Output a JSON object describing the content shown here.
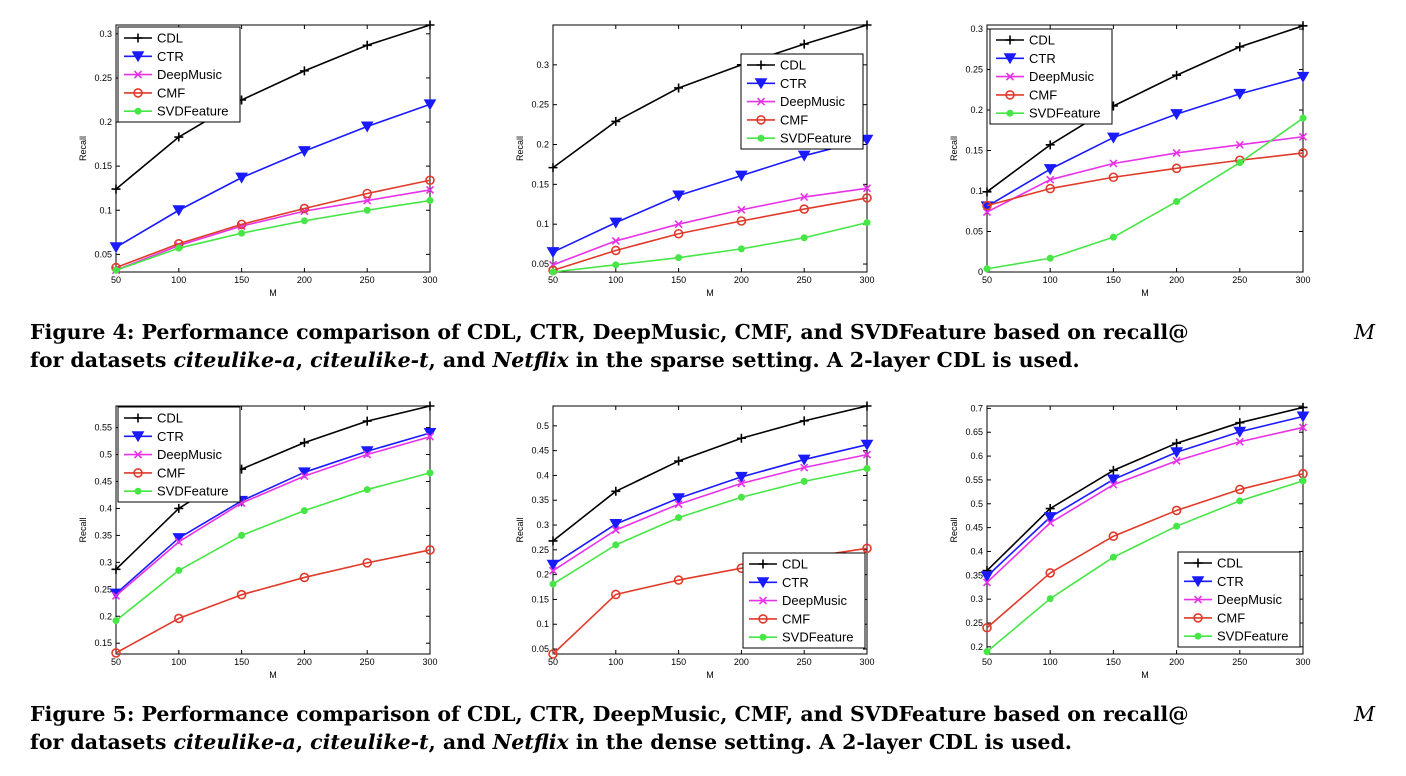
{
  "series_styles": [
    {
      "name": "CDL",
      "color": "#000000",
      "marker": "plus"
    },
    {
      "name": "CTR",
      "color": "#1a1aff",
      "marker": "triangle-down"
    },
    {
      "name": "DeepMusic",
      "color": "#e832e8",
      "marker": "x"
    },
    {
      "name": "CMF",
      "color": "#e03a2a",
      "marker": "circle"
    },
    {
      "name": "SVDFeature",
      "color": "#46e646",
      "marker": "dot"
    }
  ],
  "chart_data": [
    {
      "type": "line",
      "id": "fig4-a",
      "x": [
        50,
        100,
        150,
        200,
        250,
        300
      ],
      "xlim": [
        50,
        300
      ],
      "ylim": [
        0.03,
        0.31
      ],
      "xticks": [
        "50",
        "100",
        "150",
        "200",
        "250",
        "300"
      ],
      "yticks": [
        [
          0.05,
          "0.05"
        ],
        [
          0.1,
          "0.1"
        ],
        [
          0.15,
          "0.15"
        ],
        [
          0.2,
          "0.2"
        ],
        [
          0.25,
          "0.25"
        ],
        [
          0.3,
          "0.3"
        ]
      ],
      "xlabel": "M",
      "ylabel": "Recall",
      "legend": "top-left",
      "series": [
        {
          "name": "CDL",
          "values": [
            0.124,
            0.183,
            0.225,
            0.258,
            0.287,
            0.31
          ]
        },
        {
          "name": "CTR",
          "values": [
            0.058,
            0.1,
            0.137,
            0.167,
            0.195,
            0.22
          ]
        },
        {
          "name": "DeepMusic",
          "values": [
            0.032,
            0.06,
            0.082,
            0.099,
            0.111,
            0.123
          ]
        },
        {
          "name": "CMF",
          "values": [
            0.035,
            0.062,
            0.084,
            0.102,
            0.119,
            0.134
          ]
        },
        {
          "name": "SVDFeature",
          "values": [
            0.032,
            0.057,
            0.074,
            0.088,
            0.1,
            0.111
          ]
        }
      ]
    },
    {
      "type": "line",
      "id": "fig4-b",
      "x": [
        50,
        100,
        150,
        200,
        250,
        300
      ],
      "xlim": [
        50,
        300
      ],
      "ylim": [
        0.04,
        0.35
      ],
      "xticks": [
        "50",
        "100",
        "150",
        "200",
        "250",
        "300"
      ],
      "yticks": [
        [
          0.05,
          "0.05"
        ],
        [
          0.1,
          "0.1"
        ],
        [
          0.15,
          "0.15"
        ],
        [
          0.2,
          "0.2"
        ],
        [
          0.25,
          "0.25"
        ],
        [
          0.3,
          "0.3"
        ]
      ],
      "xlabel": "M",
      "ylabel": "Recall",
      "legend": "top-right",
      "series": [
        {
          "name": "CDL",
          "values": [
            0.171,
            0.229,
            0.271,
            0.3,
            0.326,
            0.35
          ]
        },
        {
          "name": "CTR",
          "values": [
            0.065,
            0.102,
            0.136,
            0.161,
            0.186,
            0.206
          ]
        },
        {
          "name": "DeepMusic",
          "values": [
            0.049,
            0.079,
            0.1,
            0.118,
            0.134,
            0.145
          ]
        },
        {
          "name": "CMF",
          "values": [
            0.042,
            0.067,
            0.088,
            0.104,
            0.119,
            0.133
          ]
        },
        {
          "name": "SVDFeature",
          "values": [
            0.04,
            0.049,
            0.058,
            0.069,
            0.083,
            0.102
          ]
        }
      ]
    },
    {
      "type": "line",
      "id": "fig4-c",
      "x": [
        50,
        100,
        150,
        200,
        250,
        300
      ],
      "xlim": [
        50,
        300
      ],
      "ylim": [
        0,
        0.305
      ],
      "xticks": [
        "50",
        "100",
        "150",
        "200",
        "250",
        "300"
      ],
      "yticks": [
        [
          0,
          "0"
        ],
        [
          0.05,
          "0.05"
        ],
        [
          0.1,
          "0.1"
        ],
        [
          0.15,
          "0.15"
        ],
        [
          0.2,
          "0.2"
        ],
        [
          0.25,
          "0.25"
        ],
        [
          0.3,
          "0.3"
        ]
      ],
      "xlabel": "M",
      "ylabel": "Recall",
      "legend": "top-left",
      "series": [
        {
          "name": "CDL",
          "values": [
            0.099,
            0.157,
            0.205,
            0.243,
            0.278,
            0.304
          ]
        },
        {
          "name": "CTR",
          "values": [
            0.081,
            0.127,
            0.166,
            0.195,
            0.22,
            0.241
          ]
        },
        {
          "name": "DeepMusic",
          "values": [
            0.074,
            0.114,
            0.134,
            0.147,
            0.157,
            0.167
          ]
        },
        {
          "name": "CMF",
          "values": [
            0.082,
            0.103,
            0.117,
            0.128,
            0.138,
            0.147
          ]
        },
        {
          "name": "SVDFeature",
          "values": [
            0.004,
            0.017,
            0.043,
            0.087,
            0.135,
            0.19
          ]
        }
      ]
    },
    {
      "type": "line",
      "id": "fig5-a",
      "x": [
        50,
        100,
        150,
        200,
        250,
        300
      ],
      "xlim": [
        50,
        300
      ],
      "ylim": [
        0.13,
        0.59
      ],
      "xticks": [
        "50",
        "100",
        "150",
        "200",
        "250",
        "300"
      ],
      "yticks": [
        [
          0.15,
          "0.15"
        ],
        [
          0.2,
          "0.2"
        ],
        [
          0.25,
          "0.25"
        ],
        [
          0.3,
          "0.3"
        ],
        [
          0.35,
          "0.35"
        ],
        [
          0.4,
          "0.4"
        ],
        [
          0.45,
          "0.45"
        ],
        [
          0.5,
          "0.5"
        ],
        [
          0.55,
          "0.55"
        ]
      ],
      "xlabel": "M",
      "ylabel": "Recall",
      "legend": "top-left",
      "series": [
        {
          "name": "CDL",
          "values": [
            0.287,
            0.4,
            0.473,
            0.522,
            0.562,
            0.59
          ]
        },
        {
          "name": "CTR",
          "values": [
            0.242,
            0.345,
            0.414,
            0.467,
            0.506,
            0.54
          ]
        },
        {
          "name": "DeepMusic",
          "values": [
            0.238,
            0.338,
            0.41,
            0.46,
            0.5,
            0.533
          ]
        },
        {
          "name": "CMF",
          "values": [
            0.132,
            0.196,
            0.24,
            0.272,
            0.299,
            0.323
          ]
        },
        {
          "name": "SVDFeature",
          "values": [
            0.192,
            0.285,
            0.35,
            0.396,
            0.435,
            0.466
          ]
        }
      ]
    },
    {
      "type": "line",
      "id": "fig5-b",
      "x": [
        50,
        100,
        150,
        200,
        250,
        300
      ],
      "xlim": [
        50,
        300
      ],
      "ylim": [
        0.04,
        0.54
      ],
      "xticks": [
        "50",
        "100",
        "150",
        "200",
        "250",
        "300"
      ],
      "yticks": [
        [
          0.05,
          "0.05"
        ],
        [
          0.1,
          "0.1"
        ],
        [
          0.15,
          "0.15"
        ],
        [
          0.2,
          "0.2"
        ],
        [
          0.25,
          "0.25"
        ],
        [
          0.3,
          "0.3"
        ],
        [
          0.35,
          "0.35"
        ],
        [
          0.4,
          "0.4"
        ],
        [
          0.45,
          "0.45"
        ],
        [
          0.5,
          "0.5"
        ]
      ],
      "xlabel": "M",
      "ylabel": "Recall",
      "legend": "bottom-right",
      "series": [
        {
          "name": "CDL",
          "values": [
            0.268,
            0.368,
            0.429,
            0.475,
            0.51,
            0.54
          ]
        },
        {
          "name": "CTR",
          "values": [
            0.22,
            0.302,
            0.354,
            0.397,
            0.432,
            0.462
          ]
        },
        {
          "name": "DeepMusic",
          "values": [
            0.208,
            0.29,
            0.342,
            0.384,
            0.416,
            0.442
          ]
        },
        {
          "name": "CMF",
          "values": [
            0.04,
            0.16,
            0.189,
            0.213,
            0.234,
            0.253
          ]
        },
        {
          "name": "SVDFeature",
          "values": [
            0.181,
            0.26,
            0.315,
            0.356,
            0.388,
            0.414
          ]
        }
      ]
    },
    {
      "type": "line",
      "id": "fig5-c",
      "x": [
        50,
        100,
        150,
        200,
        250,
        300
      ],
      "xlim": [
        50,
        300
      ],
      "ylim": [
        0.185,
        0.705
      ],
      "xticks": [
        "50",
        "100",
        "150",
        "200",
        "250",
        "300"
      ],
      "yticks": [
        [
          0.2,
          "0.2"
        ],
        [
          0.25,
          "0.25"
        ],
        [
          0.3,
          "0.3"
        ],
        [
          0.35,
          "0.35"
        ],
        [
          0.4,
          "0.4"
        ],
        [
          0.45,
          "0.45"
        ],
        [
          0.5,
          "0.5"
        ],
        [
          0.55,
          "0.55"
        ],
        [
          0.6,
          "0.6"
        ],
        [
          0.65,
          "0.65"
        ],
        [
          0.7,
          "0.7"
        ]
      ],
      "xlabel": "M",
      "ylabel": "Recall",
      "legend": "bottom-right",
      "series": [
        {
          "name": "CDL",
          "values": [
            0.36,
            0.49,
            0.57,
            0.627,
            0.67,
            0.702
          ]
        },
        {
          "name": "CTR",
          "values": [
            0.348,
            0.472,
            0.551,
            0.608,
            0.651,
            0.683
          ]
        },
        {
          "name": "DeepMusic",
          "values": [
            0.335,
            0.46,
            0.54,
            0.59,
            0.63,
            0.66
          ]
        },
        {
          "name": "CMF",
          "values": [
            0.24,
            0.355,
            0.432,
            0.486,
            0.53,
            0.563
          ]
        },
        {
          "name": "SVDFeature",
          "values": [
            0.19,
            0.301,
            0.388,
            0.453,
            0.506,
            0.548
          ]
        }
      ]
    }
  ],
  "captions": {
    "fig4": {
      "line1_lead": "Figure 4: Performance comparison of CDL, CTR, DeepMusic, CMF, and SVDFeature based on recall@",
      "line1_var": "M",
      "line2_a": "for datasets ",
      "ds1": "citeulike-a",
      "sep1": ", ",
      "ds2": "citeulike-t",
      "sep2": ", and ",
      "ds3": "Netflix",
      "line2_tail": " in the sparse setting. A 2-layer CDL is used."
    },
    "fig5": {
      "line1_lead": "Figure 5: Performance comparison of CDL, CTR, DeepMusic, CMF, and SVDFeature based on recall@",
      "line1_var": "M",
      "line2_a": "for datasets ",
      "ds1": "citeulike-a",
      "sep1": ", ",
      "ds2": "citeulike-t",
      "sep2": ", and ",
      "ds3": "Netflix",
      "line2_tail": " in the dense setting. A 2-layer CDL is used."
    }
  }
}
